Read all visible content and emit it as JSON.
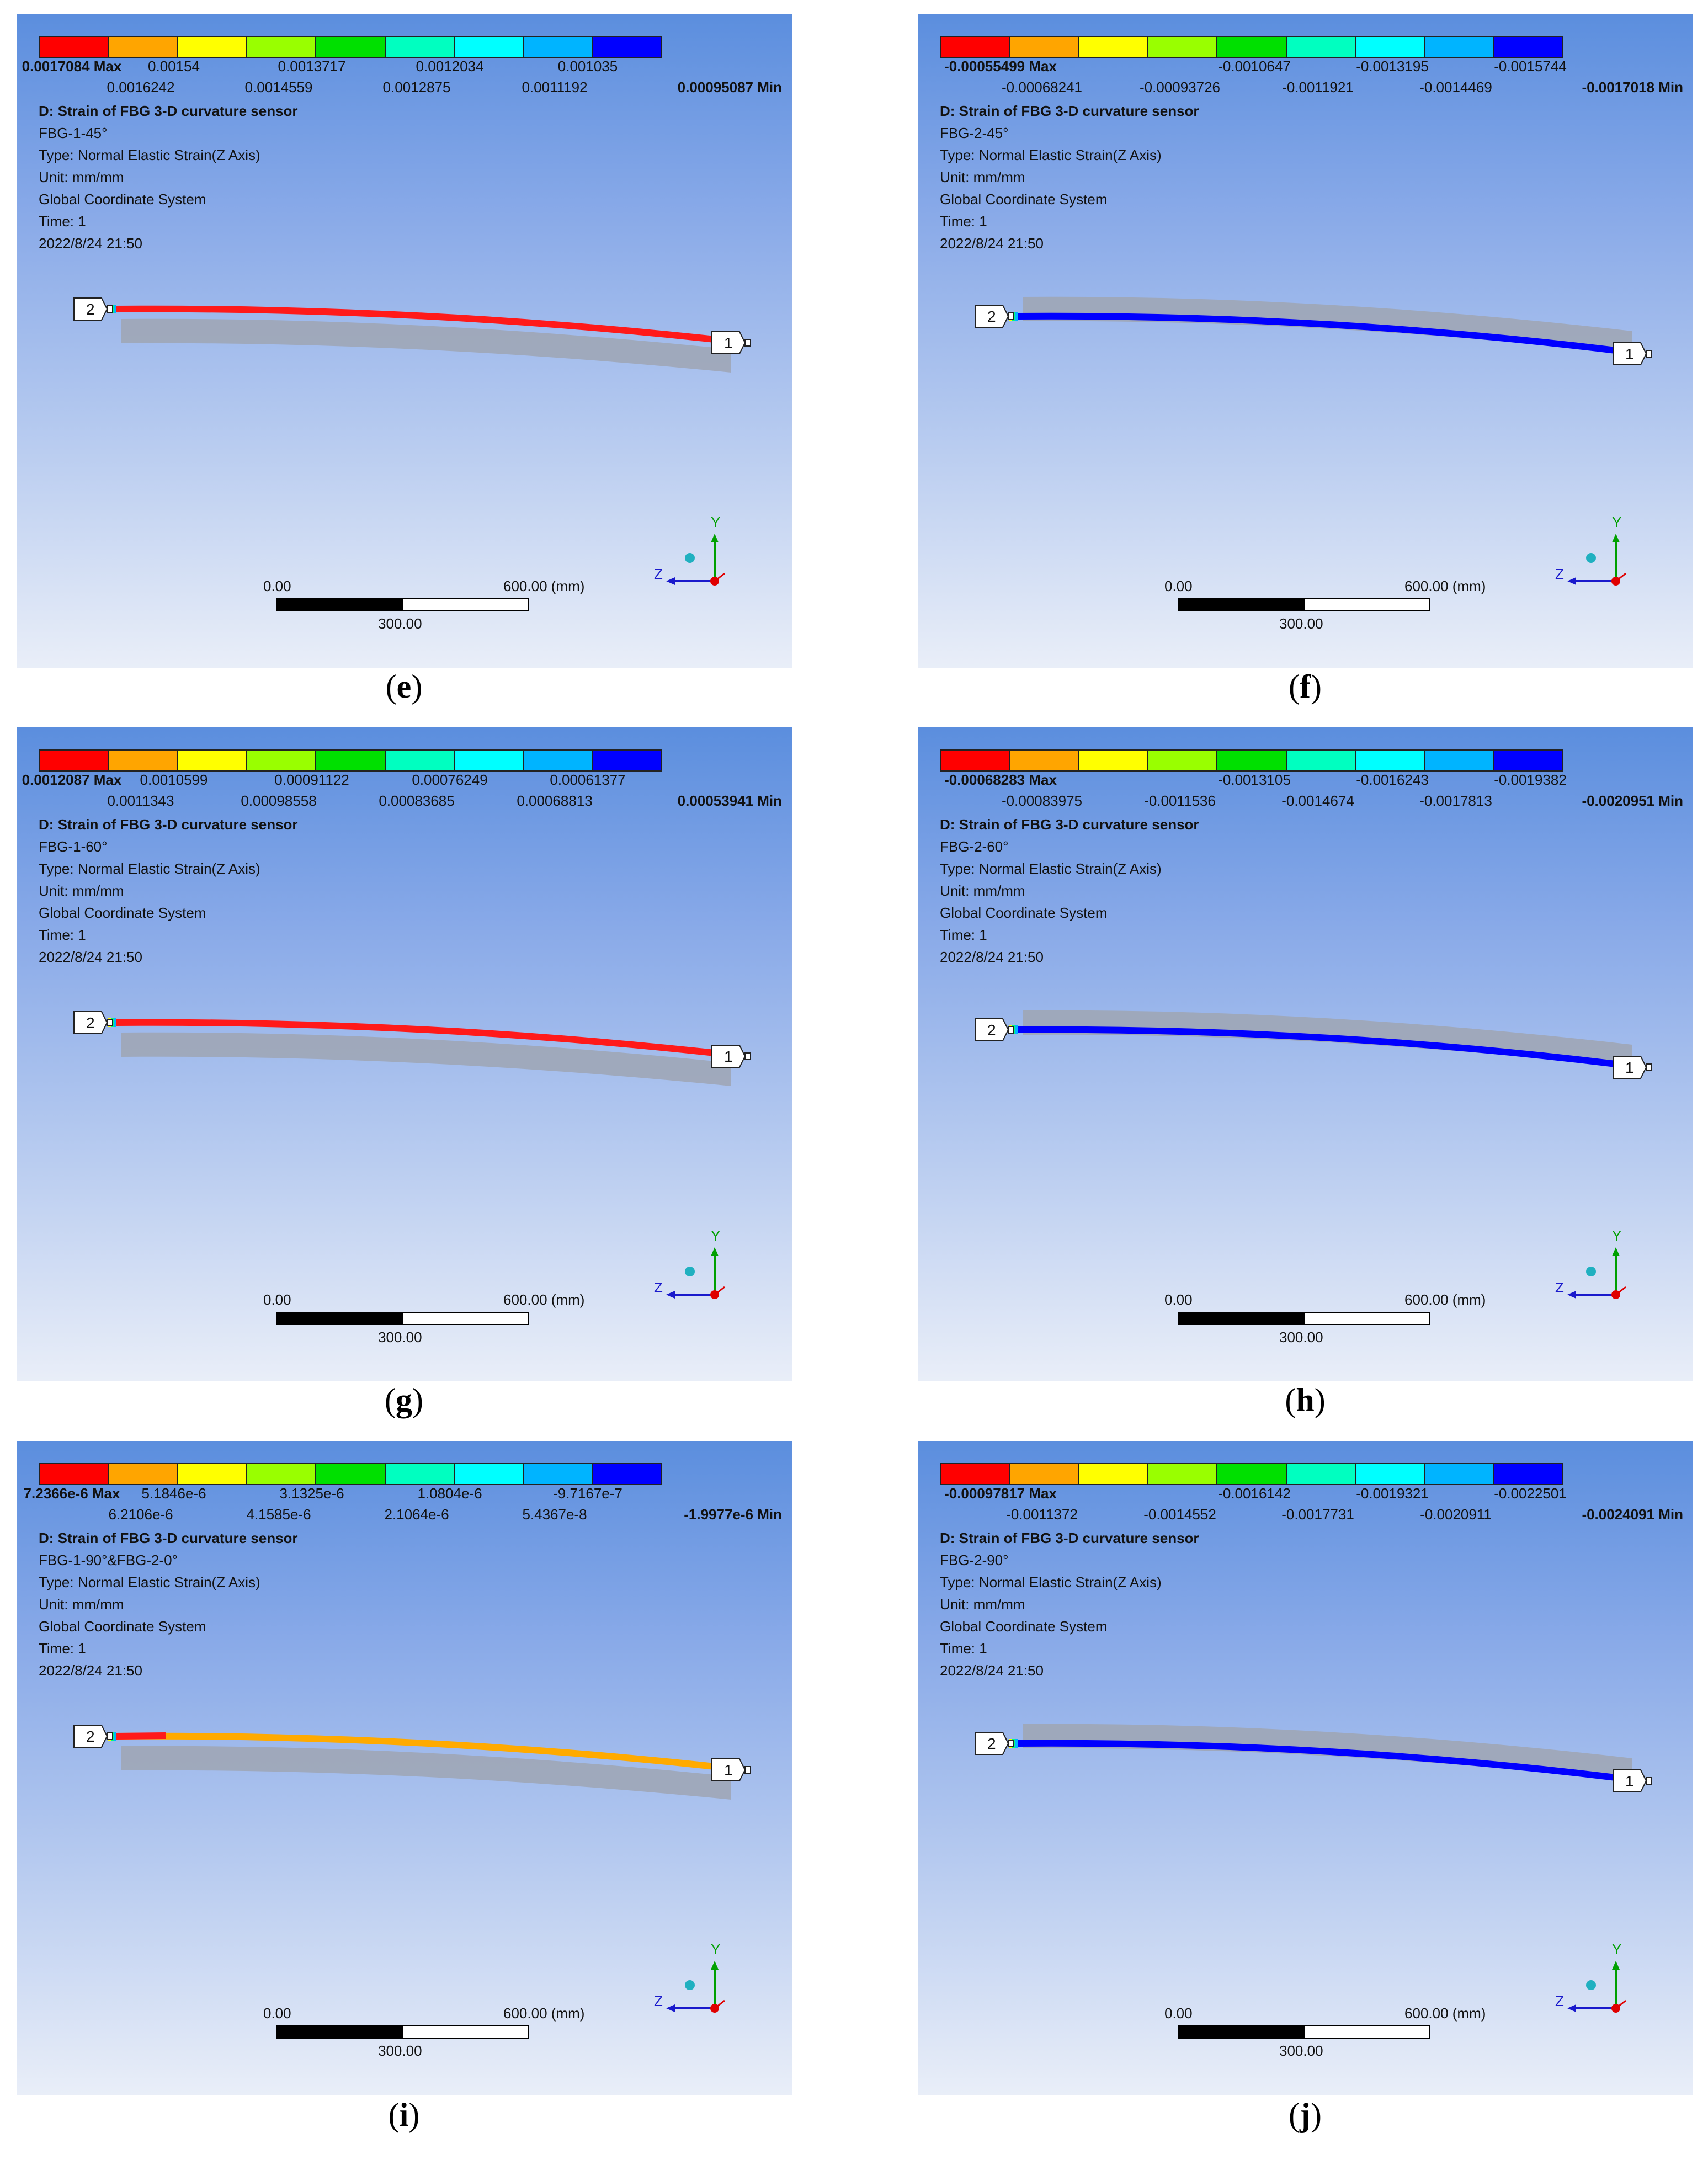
{
  "legend_colors": [
    "#ff0000",
    "#ffa500",
    "#ffff00",
    "#99ff00",
    "#00e000",
    "#00ffc0",
    "#00ffff",
    "#00b4ff",
    "#0000ff"
  ],
  "common": {
    "result_title": "D: Strain of FBG 3-D curvature sensor",
    "type": "Type: Normal Elastic Strain(Z Axis)",
    "unit": "Unit: mm/mm",
    "coord": "Global Coordinate System",
    "time": "Time: 1",
    "date": "2022/8/24 21:50",
    "scale_left": "0.00",
    "scale_right": "600.00 (mm)",
    "scale_mid": "300.00",
    "node1": "1",
    "node2": "2",
    "axis_y": "Y",
    "axis_z": "Z"
  },
  "panels": [
    {
      "id": "e",
      "caption_open": "(",
      "caption_letter": "e",
      "caption_close": ")",
      "name": "FBG-1-45°",
      "legend_row1": [
        "0.0017084 Max",
        "0.00154",
        "0.0013717",
        "0.0012034",
        "0.001035"
      ],
      "legend_row2": [
        "0.0016242",
        "0.0014559",
        "0.0012875",
        "0.0011192",
        "0.00095087 Min"
      ],
      "beam_color": "#ff1a1a",
      "beam_style": "red"
    },
    {
      "id": "f",
      "caption_open": "(",
      "caption_letter": "f",
      "caption_close": ")",
      "name": "FBG-2-45°",
      "legend_row1": [
        "-0.00055499 Max",
        "-0.0010647",
        "-0.0013195",
        "-0.0015744"
      ],
      "legend_row2": [
        "-0.00068241",
        "-0.00093726",
        "-0.0011921",
        "-0.0014469",
        "-0.0017018 Min"
      ],
      "beam_color": "#0000ff",
      "beam_style": "blue"
    },
    {
      "id": "g",
      "caption_open": "(",
      "caption_letter": "g",
      "caption_close": ")",
      "name": "FBG-1-60°",
      "legend_row1": [
        "0.0012087 Max",
        "0.0010599",
        "0.00091122",
        "0.00076249",
        "0.00061377"
      ],
      "legend_row2": [
        "0.0011343",
        "0.00098558",
        "0.00083685",
        "0.00068813",
        "0.00053941 Min"
      ],
      "beam_color": "#ff1a1a",
      "beam_style": "red"
    },
    {
      "id": "h",
      "caption_open": "(",
      "caption_letter": "h",
      "caption_close": ")",
      "name": "FBG-2-60°",
      "legend_row1": [
        "-0.00068283 Max",
        "-0.0013105",
        "-0.0016243",
        "-0.0019382"
      ],
      "legend_row2": [
        "-0.00083975",
        "-0.0011536",
        "-0.0014674",
        "-0.0017813",
        "-0.0020951 Min"
      ],
      "beam_color": "#0000ff",
      "beam_style": "blue"
    },
    {
      "id": "i",
      "caption_open": "(",
      "caption_letter": "i",
      "caption_close": ")",
      "name": "FBG-1-90°&FBG-2-0°",
      "legend_row1": [
        "7.2366e-6 Max",
        "5.1846e-6",
        "3.1325e-6",
        "1.0804e-6",
        "-9.7167e-7"
      ],
      "legend_row2": [
        "6.2106e-6",
        "4.1585e-6",
        "2.1064e-6",
        "5.4367e-8",
        "-1.9977e-6 Min"
      ],
      "beam_color": "#ffaa00",
      "beam_style": "orange"
    },
    {
      "id": "j",
      "caption_open": "(",
      "caption_letter": "j",
      "caption_close": ")",
      "name": "FBG-2-90°",
      "legend_row1": [
        "-0.00097817 Max",
        "-0.0016142",
        "-0.0019321",
        "-0.0022501"
      ],
      "legend_row2": [
        "-0.0011372",
        "-0.0014552",
        "-0.0017731",
        "-0.0020911",
        "-0.0024091 Min"
      ],
      "beam_color": "#0000ff",
      "beam_style": "blue"
    }
  ]
}
